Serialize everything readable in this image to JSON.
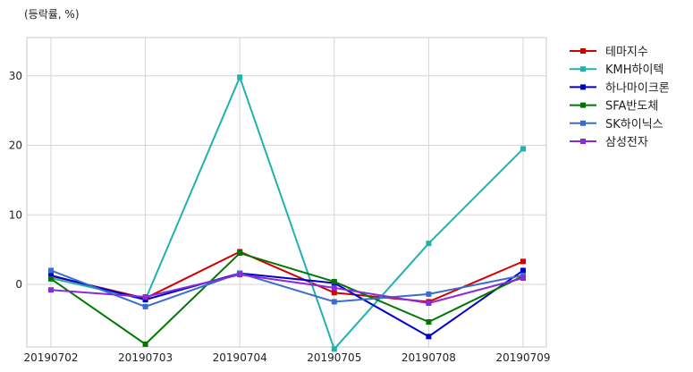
{
  "unit_label": "(등락률, %)",
  "chart_data": {
    "type": "line",
    "x": [
      "20190702",
      "20190703",
      "20190704",
      "20190705",
      "20190708",
      "20190709"
    ],
    "ylim": [
      -9,
      35.5
    ],
    "yticks": [
      0,
      10,
      20,
      30
    ],
    "grid": true,
    "legend": "right-top",
    "series": [
      {
        "name": "테마지수",
        "color": "#d40000",
        "values": [
          1.2,
          -2.0,
          4.7,
          -1.2,
          -2.5,
          3.3
        ]
      },
      {
        "name": "KMH하이텍",
        "color": "#20b2aa",
        "values": [
          0.9,
          -2.2,
          29.8,
          -9.3,
          5.9,
          19.5
        ]
      },
      {
        "name": "하나마이크론",
        "color": "#0000cd",
        "values": [
          1.3,
          -2.2,
          1.6,
          0.2,
          -7.5,
          2.0
        ]
      },
      {
        "name": "SFA반도체",
        "color": "#007800",
        "values": [
          0.8,
          -8.6,
          4.5,
          0.4,
          -5.4,
          1.2
        ]
      },
      {
        "name": "SK하이닉스",
        "color": "#3a6bd0",
        "values": [
          2.0,
          -3.2,
          1.6,
          -2.5,
          -1.4,
          1.3
        ]
      },
      {
        "name": "삼성전자",
        "color": "#8a2bd8",
        "values": [
          -0.8,
          -1.8,
          1.4,
          -0.5,
          -2.7,
          0.9
        ]
      }
    ]
  }
}
